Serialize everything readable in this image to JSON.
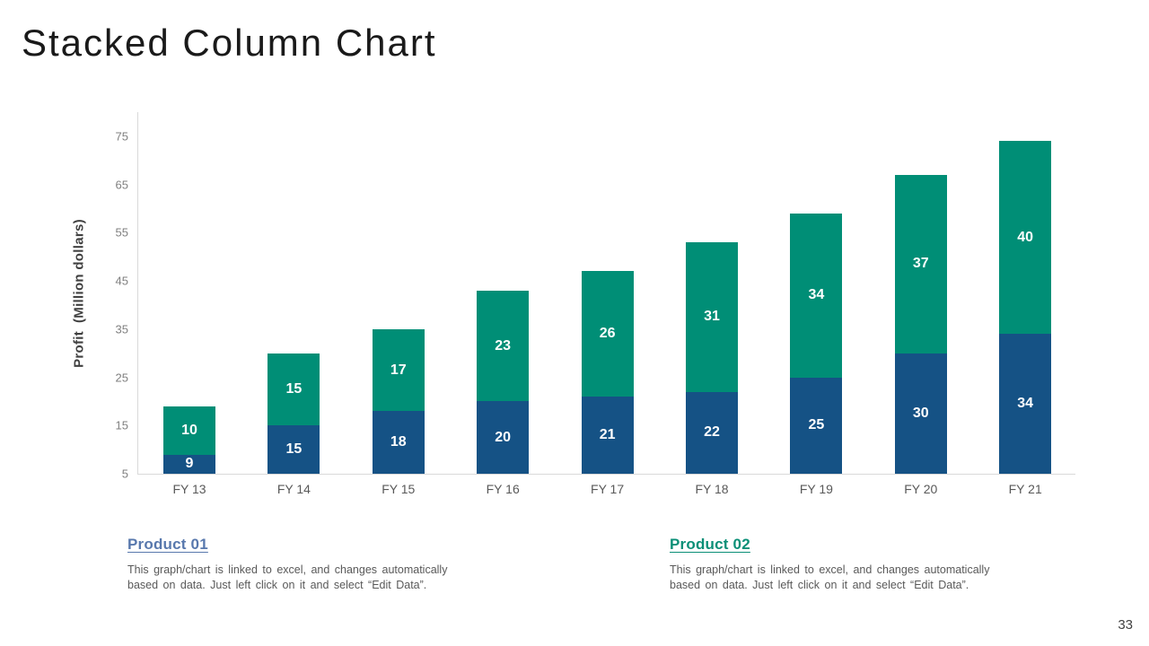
{
  "slide": {
    "title": "Stacked Column Chart",
    "page_number": "33"
  },
  "chart_data": {
    "type": "bar",
    "stacked": true,
    "categories": [
      "FY 13",
      "FY 14",
      "FY 15",
      "FY 16",
      "FY 17",
      "FY 18",
      "FY 19",
      "FY 20",
      "FY 21"
    ],
    "series": [
      {
        "name": "Product 01",
        "color": "#155285",
        "values": [
          9,
          15,
          18,
          20,
          21,
          22,
          25,
          30,
          34
        ]
      },
      {
        "name": "Product 02",
        "color": "#008E76",
        "values": [
          10,
          15,
          17,
          23,
          26,
          31,
          34,
          37,
          40
        ]
      }
    ],
    "title": "",
    "xlabel": "",
    "ylabel": "Profit  (Million dollars)",
    "yticks": [
      5,
      15,
      25,
      35,
      45,
      55,
      65,
      75
    ],
    "ylim": [
      5,
      80
    ],
    "grid": false,
    "legend_position": "none",
    "note": "bars are drawn from the axis minimum (5); segment labels show series values"
  },
  "footer": {
    "products": [
      {
        "label": "Product 01",
        "color": "#5878AD",
        "description": "This graph/chart is linked to excel, and changes automatically\nbased on data. Just left click on it and select “Edit Data”."
      },
      {
        "label": "Product 02",
        "color": "#0A8F77",
        "description": "This graph/chart is linked to excel, and changes automatically\nbased on data. Just left click on it and select “Edit Data”."
      }
    ]
  }
}
